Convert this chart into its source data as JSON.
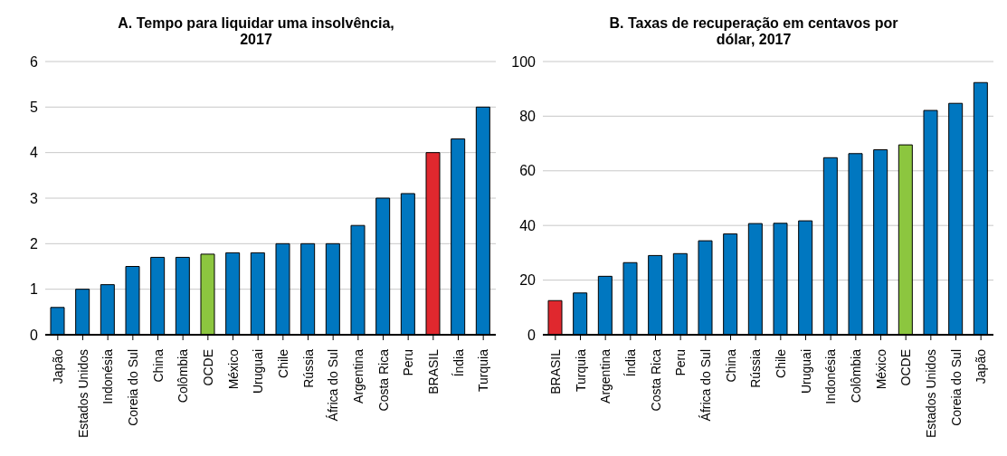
{
  "chart_data": [
    {
      "type": "bar",
      "title": "A. Tempo para liquidar uma insolvência, 2017",
      "categories": [
        "Japão",
        "Estados Unidos",
        "Indonésia",
        "Coreia do Sul",
        "China",
        "Colômbia",
        "OCDE",
        "México",
        "Uruguai",
        "Chile",
        "Rússia",
        "África do Sul",
        "Argentina",
        "Costa Rica",
        "Peru",
        "BRASIL",
        "Índia",
        "Turquia"
      ],
      "values": [
        0.6,
        1,
        1.1,
        1.5,
        1.7,
        1.7,
        1.77,
        1.8,
        1.8,
        2,
        2,
        2,
        2.4,
        3,
        3.1,
        4,
        4.3,
        5
      ],
      "colors": [
        "#0077c0",
        "#0077c0",
        "#0077c0",
        "#0077c0",
        "#0077c0",
        "#0077c0",
        "#8cc63f",
        "#0077c0",
        "#0077c0",
        "#0077c0",
        "#0077c0",
        "#0077c0",
        "#0077c0",
        "#0077c0",
        "#0077c0",
        "#e0282e",
        "#0077c0",
        "#0077c0"
      ],
      "ylim": [
        0,
        6
      ],
      "yticks": [
        0,
        1,
        2,
        3,
        4,
        5,
        6
      ],
      "grid": "y",
      "legend": false
    },
    {
      "type": "bar",
      "title": "B. Taxas de recuperação em centavos por dólar, 2017",
      "categories": [
        "BRASIL",
        "Turquia",
        "Argentina",
        "Índia",
        "Costa Rica",
        "Peru",
        "África do Sul",
        "China",
        "Rússia",
        "Chile",
        "Uruguai",
        "Indonésia",
        "Colômbia",
        "México",
        "OCDE",
        "Estados Unidos",
        "Coreia do Sul",
        "Japão"
      ],
      "values": [
        12.5,
        15.3,
        21.4,
        26.4,
        29,
        29.7,
        34.4,
        36.9,
        40.7,
        40.8,
        41.7,
        64.8,
        66.3,
        67.7,
        69.5,
        82.1,
        84.7,
        92.3
      ],
      "colors": [
        "#e0282e",
        "#0077c0",
        "#0077c0",
        "#0077c0",
        "#0077c0",
        "#0077c0",
        "#0077c0",
        "#0077c0",
        "#0077c0",
        "#0077c0",
        "#0077c0",
        "#0077c0",
        "#0077c0",
        "#0077c0",
        "#8cc63f",
        "#0077c0",
        "#0077c0",
        "#0077c0"
      ],
      "ylim": [
        0,
        100
      ],
      "yticks": [
        0,
        20,
        40,
        60,
        80,
        100
      ],
      "grid": "y",
      "legend": false
    }
  ]
}
